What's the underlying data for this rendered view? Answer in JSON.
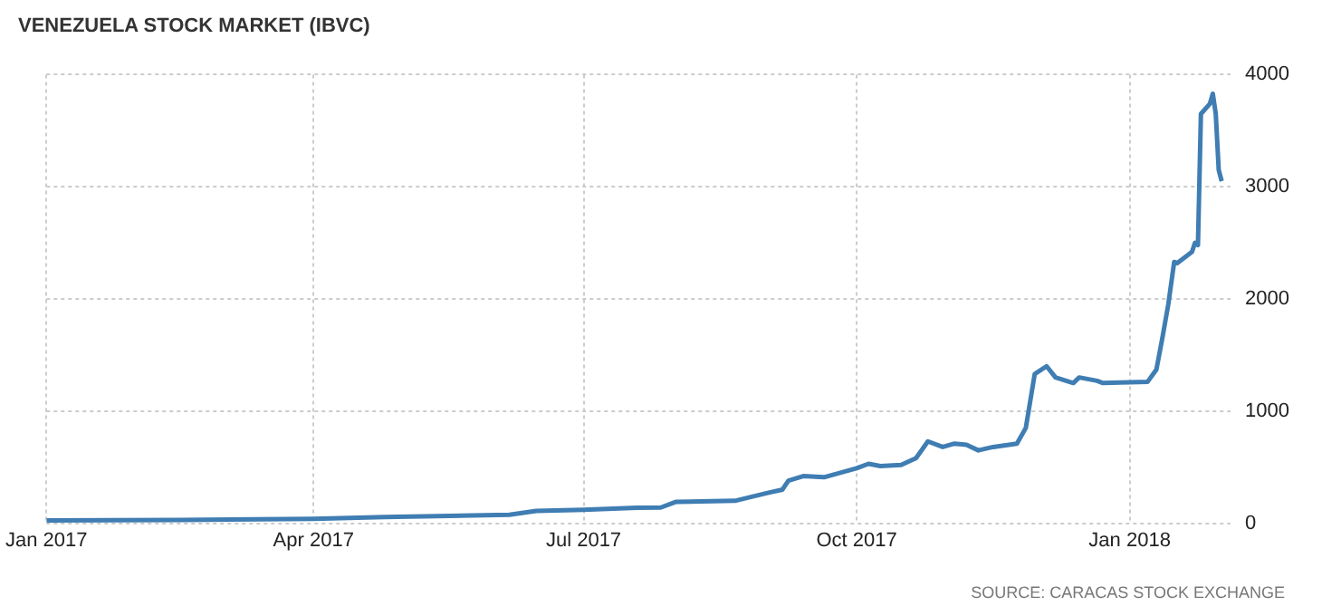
{
  "chart_data": {
    "type": "line",
    "title": "VENEZUELA STOCK MARKET (IBVC)",
    "annotations": [
      "SOURCE: CARACAS STOCK EXCHANGE"
    ],
    "x": [
      "2017-01-01",
      "2017-02-15",
      "2017-04-01",
      "2017-04-25",
      "2017-06-06",
      "2017-06-15",
      "2017-07-01",
      "2017-07-19",
      "2017-07-27",
      "2017-08-01",
      "2017-08-21",
      "2017-09-01",
      "2017-09-06",
      "2017-09-08",
      "2017-09-13",
      "2017-09-20",
      "2017-10-01",
      "2017-10-05",
      "2017-10-09",
      "2017-10-16",
      "2017-10-21",
      "2017-10-25",
      "2017-10-30",
      "2017-11-03",
      "2017-11-07",
      "2017-11-11",
      "2017-11-16",
      "2017-11-24",
      "2017-11-27",
      "2017-11-30",
      "2017-12-04",
      "2017-12-07",
      "2017-12-13",
      "2017-12-15",
      "2017-12-21",
      "2017-12-23",
      "2018-01-07",
      "2018-01-10",
      "2018-01-12",
      "2018-01-14",
      "2018-01-16",
      "2018-01-17",
      "2018-01-22",
      "2018-01-23",
      "2018-01-24",
      "2018-01-25",
      "2018-01-28",
      "2018-01-29",
      "2018-01-30",
      "2018-01-31",
      "2018-02-01"
    ],
    "series": [
      {
        "color": "#3f7db3",
        "values": [
          25,
          30,
          40,
          55,
          75,
          110,
          120,
          138,
          140,
          190,
          200,
          270,
          300,
          380,
          420,
          410,
          490,
          530,
          510,
          520,
          580,
          730,
          680,
          710,
          700,
          650,
          680,
          710,
          850,
          1330,
          1400,
          1300,
          1250,
          1300,
          1270,
          1250,
          1260,
          1370,
          1650,
          1950,
          2330,
          2320,
          2420,
          2500,
          2480,
          3650,
          3740,
          3830,
          3650,
          3150,
          3050
        ]
      }
    ],
    "xlim": [
      "2017-01-01",
      "2018-02-04"
    ],
    "xticks": [
      {
        "value": "2017-01-01",
        "label": "Jan 2017"
      },
      {
        "value": "2017-04-01",
        "label": "Apr 2017"
      },
      {
        "value": "2017-07-01",
        "label": "Jul 2017"
      },
      {
        "value": "2017-10-01",
        "label": "Oct 2017"
      },
      {
        "value": "2018-01-01",
        "label": "Jan 2018"
      }
    ],
    "ylim": [
      0,
      4000
    ],
    "yticks": [
      0,
      1000,
      2000,
      3000,
      4000
    ],
    "grid": true,
    "legend": false,
    "marker": "none",
    "line_style": "solid"
  }
}
